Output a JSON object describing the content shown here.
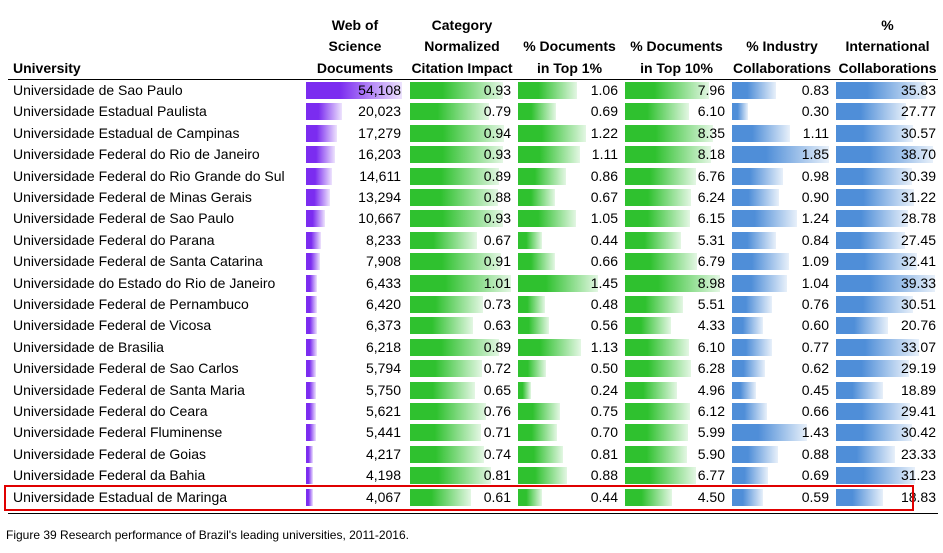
{
  "columns": [
    {
      "key": "univ",
      "lines": [
        "University"
      ]
    },
    {
      "key": "wos",
      "lines": [
        "Web of",
        "Science",
        "Documents"
      ]
    },
    {
      "key": "cnci",
      "lines": [
        "Category",
        "Normalized",
        "Citation Impact"
      ]
    },
    {
      "key": "top1",
      "lines": [
        "% Documents",
        "in Top 1%"
      ]
    },
    {
      "key": "top10",
      "lines": [
        "% Documents",
        "in Top 10%"
      ]
    },
    {
      "key": "ind",
      "lines": [
        "% Industry",
        "Collaborations"
      ]
    },
    {
      "key": "intl",
      "lines": [
        "%",
        "International",
        "Collaborations"
      ]
    }
  ],
  "bar_colors": {
    "wos": "#7b2cf0",
    "cnci": "#2fc12f",
    "top1": "#2fc12f",
    "top10": "#2fc12f",
    "ind": "#4f8ed8",
    "intl": "#4f8ed8"
  },
  "rows": [
    {
      "name": "Universidade de Sao Paulo",
      "wos": "54,108",
      "cnci": "0.93",
      "top1": "1.06",
      "top10": "7.96",
      "ind": "0.83",
      "intl": "35.83"
    },
    {
      "name": "Universidade Estadual Paulista",
      "wos": "20,023",
      "cnci": "0.79",
      "top1": "0.69",
      "top10": "6.10",
      "ind": "0.30",
      "intl": "27.77"
    },
    {
      "name": "Universidade Estadual de Campinas",
      "wos": "17,279",
      "cnci": "0.94",
      "top1": "1.22",
      "top10": "8.35",
      "ind": "1.11",
      "intl": "30.57"
    },
    {
      "name": "Universidade Federal do Rio de Janeiro",
      "wos": "16,203",
      "cnci": "0.93",
      "top1": "1.11",
      "top10": "8.18",
      "ind": "1.85",
      "intl": "38.70"
    },
    {
      "name": "Universidade Federal do Rio Grande do Sul",
      "wos": "14,611",
      "cnci": "0.89",
      "top1": "0.86",
      "top10": "6.76",
      "ind": "0.98",
      "intl": "30.39"
    },
    {
      "name": "Universidade Federal de Minas Gerais",
      "wos": "13,294",
      "cnci": "0.88",
      "top1": "0.67",
      "top10": "6.24",
      "ind": "0.90",
      "intl": "31.22"
    },
    {
      "name": "Universidade Federal de Sao Paulo",
      "wos": "10,667",
      "cnci": "0.93",
      "top1": "1.05",
      "top10": "6.15",
      "ind": "1.24",
      "intl": "28.78"
    },
    {
      "name": "Universidade Federal do Parana",
      "wos": "8,233",
      "cnci": "0.67",
      "top1": "0.44",
      "top10": "5.31",
      "ind": "0.84",
      "intl": "27.45"
    },
    {
      "name": "Universidade Federal de Santa Catarina",
      "wos": "7,908",
      "cnci": "0.91",
      "top1": "0.66",
      "top10": "6.79",
      "ind": "1.09",
      "intl": "32.41"
    },
    {
      "name": "Universidade do Estado do Rio de Janeiro",
      "wos": "6,433",
      "cnci": "1.01",
      "top1": "1.45",
      "top10": "8.98",
      "ind": "1.04",
      "intl": "39.33"
    },
    {
      "name": "Universidade Federal de Pernambuco",
      "wos": "6,420",
      "cnci": "0.73",
      "top1": "0.48",
      "top10": "5.51",
      "ind": "0.76",
      "intl": "30.51"
    },
    {
      "name": "Universidade Federal de Vicosa",
      "wos": "6,373",
      "cnci": "0.63",
      "top1": "0.56",
      "top10": "4.33",
      "ind": "0.60",
      "intl": "20.76"
    },
    {
      "name": "Universidade de Brasilia",
      "wos": "6,218",
      "cnci": "0.89",
      "top1": "1.13",
      "top10": "6.10",
      "ind": "0.77",
      "intl": "33.07"
    },
    {
      "name": "Universidade Federal de Sao Carlos",
      "wos": "5,794",
      "cnci": "0.72",
      "top1": "0.50",
      "top10": "6.28",
      "ind": "0.62",
      "intl": "29.19"
    },
    {
      "name": "Universidade Federal de Santa Maria",
      "wos": "5,750",
      "cnci": "0.65",
      "top1": "0.24",
      "top10": "4.96",
      "ind": "0.45",
      "intl": "18.89"
    },
    {
      "name": "Universidade Federal do Ceara",
      "wos": "5,621",
      "cnci": "0.76",
      "top1": "0.75",
      "top10": "6.12",
      "ind": "0.66",
      "intl": "29.41"
    },
    {
      "name": "Universidade Federal Fluminense",
      "wos": "5,441",
      "cnci": "0.71",
      "top1": "0.70",
      "top10": "5.99",
      "ind": "1.43",
      "intl": "30.42"
    },
    {
      "name": "Universidade Federal de Goias",
      "wos": "4,217",
      "cnci": "0.74",
      "top1": "0.81",
      "top10": "5.90",
      "ind": "0.88",
      "intl": "23.33"
    },
    {
      "name": "Universidade Federal da Bahia",
      "wos": "4,198",
      "cnci": "0.81",
      "top1": "0.88",
      "top10": "6.77",
      "ind": "0.69",
      "intl": "31.23"
    },
    {
      "name": "Universidade Estadual de Maringa",
      "wos": "4,067",
      "cnci": "0.61",
      "top1": "0.44",
      "top10": "4.50",
      "ind": "0.59",
      "intl": "18.83"
    }
  ],
  "highlighted_row": "Universidade Estadual de Maringa",
  "caption": "Figure 39 Research performance of Brazil's leading universities, 2011-2016."
}
